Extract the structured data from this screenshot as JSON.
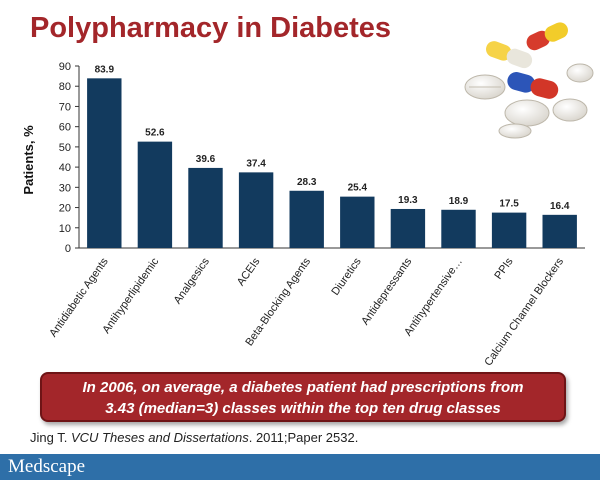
{
  "page": {
    "title": "Polypharmacy in Diabetes"
  },
  "chart_data": {
    "type": "bar",
    "categories": [
      "Antidiabetic Agents",
      "Antihyperlipidemic",
      "Analgesics",
      "ACEIs",
      "Beta-Blocking Agents",
      "Diuretics",
      "Antidepressants",
      "Antihypertensive…",
      "PPIs",
      "Calcium Channel Blockers"
    ],
    "values": [
      83.9,
      52.6,
      39.6,
      37.4,
      28.3,
      25.4,
      19.3,
      18.9,
      17.5,
      16.4
    ],
    "value_labels": [
      "83.9",
      "52.6",
      "39.6",
      "37.4",
      "28.3",
      "25.4",
      "19.3",
      "18.9",
      "17.5",
      "16.4"
    ],
    "ylabel": "Patients, %",
    "xlabel": "",
    "ylim": [
      0,
      90
    ],
    "yticks": [
      "0",
      "10",
      "20",
      "30",
      "40",
      "50",
      "60",
      "70",
      "80",
      "90"
    ],
    "grid": false,
    "bar_color": "#123a5e"
  },
  "callout": {
    "line1": "In 2006, on average, a diabetes patient had prescriptions from",
    "line2": "3.43 (median=3) classes within the top ten drug classes"
  },
  "citation": {
    "author": "Jing T.",
    "journal": "VCU Theses and Dissertations",
    "details": ". 2011;Paper 2532."
  },
  "footer": {
    "brand": "Medscape"
  },
  "colors": {
    "title": "#a3262a",
    "callout_bg": "#a3262a",
    "footer_bg": "#2e6fa8"
  },
  "decorations": {
    "pills": "pills-image"
  }
}
